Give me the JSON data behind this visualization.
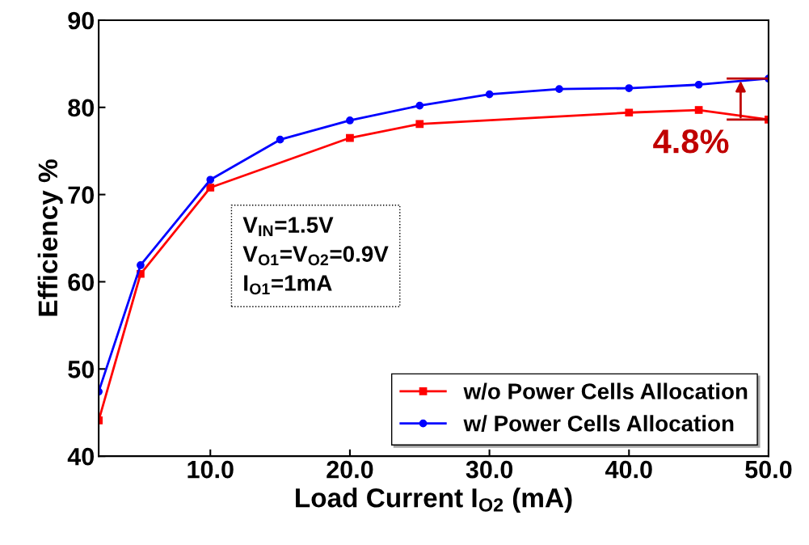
{
  "chart_data": {
    "type": "line",
    "xlabel": "Load Current I$_{O2}$ (mA)",
    "ylabel": "Efficiency %",
    "xlim": [
      2,
      50
    ],
    "xticks": [
      {
        "value": 10,
        "label": "10.0"
      },
      {
        "value": 20,
        "label": "20.0"
      },
      {
        "value": 30,
        "label": "30.0"
      },
      {
        "value": 40,
        "label": "40.0"
      },
      {
        "value": 50,
        "label": "50.0"
      }
    ],
    "ylim": [
      40,
      90
    ],
    "yticks": [
      40,
      50,
      60,
      70,
      80,
      90
    ],
    "series": [
      {
        "name": "w/o Power Cells Allocation",
        "color": "#ff0000",
        "marker": "square",
        "x": [
          2,
          5,
          10,
          20,
          25,
          40,
          45,
          50
        ],
        "values": [
          44.1,
          60.9,
          70.8,
          76.5,
          78.1,
          79.4,
          79.7,
          78.6
        ]
      },
      {
        "name": "w/ Power Cells Allocation",
        "color": "#0000ff",
        "marker": "circle",
        "x": [
          2,
          5,
          10,
          15,
          20,
          25,
          30,
          35,
          40,
          45,
          50
        ],
        "values": [
          47.4,
          61.9,
          71.7,
          76.3,
          78.5,
          80.2,
          81.5,
          82.1,
          82.2,
          82.6,
          83.3
        ]
      }
    ],
    "annotations": [
      {
        "text": "4.8%",
        "x": 48,
        "y": 78.6
      },
      "V$_{IN}$=1.5V\nV$_{O1}$=V$_{O2}$=0.9V\nI$_{O1}$=1mA"
    ],
    "legend": "bottom right",
    "grid": false,
    "line_style": "solid"
  }
}
